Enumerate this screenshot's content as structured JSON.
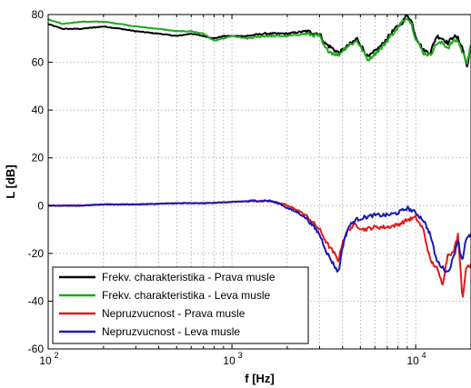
{
  "chart_data": {
    "type": "line",
    "xlabel": "f [Hz]",
    "ylabel": "L [dB]",
    "xscale": "log",
    "xlim": [
      100,
      20000
    ],
    "ylim": [
      -60,
      80
    ],
    "grid": "dotted",
    "legend_position": "bottom-left",
    "x_ticks": [
      100,
      1000,
      10000
    ],
    "x_tick_labels": [
      {
        "base": "10",
        "exp": "2"
      },
      {
        "base": "10",
        "exp": "3"
      },
      {
        "base": "10",
        "exp": "4"
      }
    ],
    "y_ticks": [
      -60,
      -40,
      -20,
      0,
      20,
      40,
      60,
      80
    ],
    "y_tick_labels": [
      "-60",
      "-40",
      "-20",
      "0",
      "20",
      "40",
      "60",
      "80"
    ],
    "series": [
      {
        "name": "Frekv. charakteristika - Prava musle",
        "color": "#000000",
        "x": [
          100,
          120,
          150,
          200,
          250,
          300,
          400,
          500,
          600,
          700,
          800,
          900,
          1000,
          1200,
          1500,
          2000,
          2500,
          3000,
          3200,
          3500,
          3800,
          4000,
          4300,
          4800,
          5500,
          6500,
          7500,
          8500,
          9000,
          9500,
          10000,
          11000,
          12000,
          13000,
          14000,
          15000,
          16000,
          17000,
          18000,
          19000,
          20000
        ],
        "values": [
          76,
          74,
          74,
          75,
          74,
          73,
          72,
          71,
          72,
          71,
          70,
          71,
          71,
          71,
          72,
          72,
          73,
          72,
          68,
          66,
          64,
          65,
          67,
          70,
          62,
          67,
          73,
          77,
          80,
          77,
          71,
          65,
          64,
          71,
          70,
          68,
          71,
          70,
          66,
          58,
          67
        ]
      },
      {
        "name": "Frekv. charakteristika - Leva musle",
        "color": "#1ea91e",
        "x": [
          100,
          120,
          150,
          200,
          250,
          300,
          400,
          500,
          600,
          700,
          800,
          900,
          1000,
          1200,
          1500,
          2000,
          2500,
          3000,
          3200,
          3500,
          3800,
          4000,
          4300,
          4800,
          5500,
          6500,
          7500,
          8500,
          9000,
          9500,
          10000,
          11000,
          12000,
          13000,
          14000,
          15000,
          16000,
          17000,
          18000,
          19000,
          20000
        ],
        "values": [
          78,
          76,
          77,
          77,
          76,
          75,
          74,
          73,
          73,
          72,
          69,
          70,
          71,
          70,
          71,
          71,
          72,
          71,
          66,
          64,
          63,
          65,
          67,
          69,
          61,
          66,
          72,
          77,
          79,
          76,
          70,
          64,
          63,
          68,
          68,
          66,
          69,
          69,
          64,
          60,
          67
        ]
      },
      {
        "name": "Nepruzvucnost - Prava musle",
        "color": "#e41a1a",
        "x": [
          100,
          150,
          200,
          300,
          500,
          700,
          1000,
          1300,
          1600,
          1800,
          2000,
          2300,
          2600,
          3000,
          3300,
          3600,
          3800,
          4000,
          4300,
          4700,
          5200,
          6000,
          7000,
          8000,
          9000,
          10000,
          11000,
          12000,
          13000,
          14000,
          15000,
          16000,
          17000,
          17500,
          18000,
          18500,
          19000,
          20000
        ],
        "values": [
          0,
          0,
          0.5,
          0.5,
          1,
          1,
          1.5,
          2,
          2,
          1,
          0,
          -2,
          -5,
          -10,
          -16,
          -20,
          -23,
          -15,
          -10,
          -8,
          -10,
          -9,
          -9,
          -8,
          -6,
          -5,
          -10,
          -23,
          -26,
          -33,
          -20,
          -20,
          -12,
          -25,
          -40,
          -30,
          -25,
          -25
        ]
      },
      {
        "name": "Nepruzvucnost - Leva musle",
        "color": "#1a1ab3",
        "x": [
          100,
          150,
          200,
          300,
          500,
          700,
          1000,
          1300,
          1600,
          1800,
          2000,
          2300,
          2600,
          3000,
          3300,
          3600,
          3800,
          4000,
          4300,
          4700,
          5200,
          6000,
          7000,
          8000,
          9000,
          10000,
          11000,
          12000,
          13000,
          14000,
          15000,
          16000,
          17000,
          17500,
          18000,
          18500,
          19000,
          20000
        ],
        "values": [
          0,
          0,
          0.5,
          0.5,
          1,
          1,
          1.5,
          2,
          2,
          1,
          -1,
          -3,
          -6,
          -12,
          -20,
          -25,
          -28,
          -17,
          -9,
          -6,
          -5,
          -4,
          -4,
          -3,
          -1,
          -3,
          -6,
          -12,
          -23,
          -26,
          -28,
          -22,
          -14,
          -20,
          -23,
          -16,
          -14,
          -12
        ]
      }
    ]
  }
}
